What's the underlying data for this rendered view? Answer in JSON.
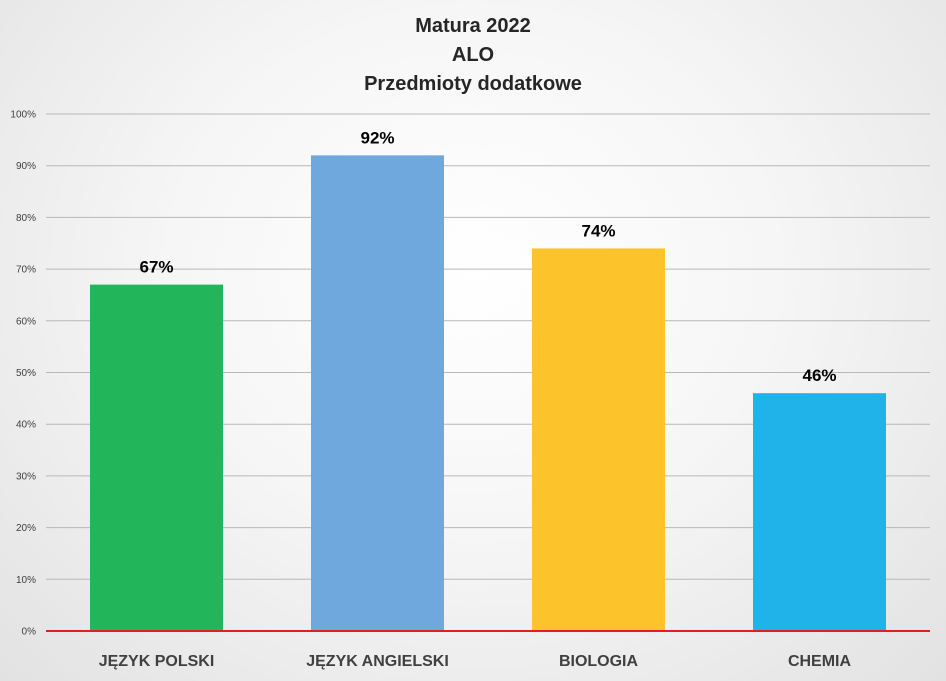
{
  "chart_data": {
    "type": "bar",
    "title_lines": [
      "Matura 2022",
      "ALO",
      "Przedmioty dodatkowe"
    ],
    "categories": [
      "JĘZYK POLSKI",
      "JĘZYK ANGIELSKI",
      "BIOLOGIA",
      "CHEMIA"
    ],
    "values": [
      67,
      92,
      74,
      46
    ],
    "data_labels": [
      "67%",
      "92%",
      "74%",
      "46%"
    ],
    "bar_colors": [
      "#22b55a",
      "#6fa8dc",
      "#fcc42a",
      "#1fb3ea"
    ],
    "ylim": [
      0,
      100
    ],
    "yticks": [
      0,
      10,
      20,
      30,
      40,
      50,
      60,
      70,
      80,
      90,
      100
    ],
    "ytick_labels": [
      "0%",
      "10%",
      "20%",
      "30%",
      "40%",
      "50%",
      "60%",
      "70%",
      "80%",
      "90%",
      "100%"
    ],
    "grid": true,
    "baseline_color": "#e02020",
    "xlabel": "",
    "ylabel": ""
  }
}
